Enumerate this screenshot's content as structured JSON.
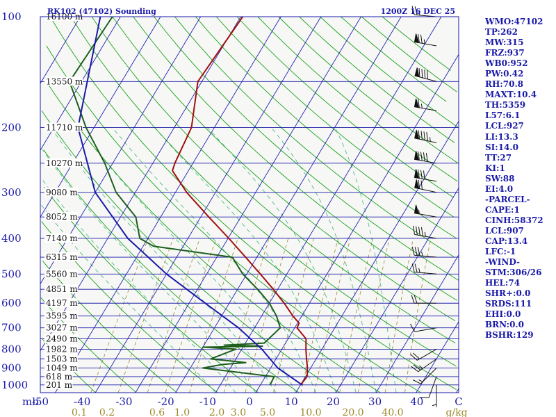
{
  "header": {
    "station": "RK102 (47102) Sounding",
    "time": "1200Z 16 DEC 25"
  },
  "indices": [
    "WMO:47102",
    "TP:262",
    "MW:315",
    "FRZ:937",
    "WB0:952",
    "PW:0.42",
    "RH:70.8",
    "MAXT:10.4",
    "TH:5359",
    "L57:6.1",
    "LCL:927",
    "LI:13.3",
    "SI:14.0",
    "TT:27",
    "KI:1",
    "SW:88",
    "EI:4.0",
    "-PARCEL-",
    "CAPE:1",
    "CINH:58372",
    "LCL:907",
    "CAP:13.4",
    "LFC:-1",
    "-WIND-",
    "STM:306/26",
    "HEL:74",
    "SHR+:0.0",
    "SRDS:111",
    "EHI:0.0",
    "BRN:0.0",
    "BSHR:129"
  ],
  "chart_data": {
    "type": "line",
    "subtype": "skew-T log-P thermodynamic diagram",
    "y_axis": {
      "unit": "mb",
      "scale": "log",
      "range": [
        1000,
        100
      ],
      "tick_labels": [
        "100",
        "200",
        "300",
        "400",
        "500",
        "600",
        "700",
        "800",
        "900",
        "1000"
      ]
    },
    "x_axis": {
      "unit": "C",
      "range": [
        -50,
        50
      ],
      "tick_labels": [
        "-50",
        "-40",
        "-30",
        "-20",
        "-10",
        "0",
        "10",
        "20",
        "30",
        "40",
        "C"
      ]
    },
    "mixing_ratio_axis": {
      "unit": "g/kg",
      "tick_labels": [
        "0.1",
        "0.2",
        "0.6",
        "1.0",
        "2.0",
        "3.0",
        "5.0",
        "10.0",
        "20.0",
        "40.0",
        "g/kg"
      ]
    },
    "heights_m": [
      {
        "p": 100,
        "label": "16100 m"
      },
      {
        "p": 150,
        "label": "13550 m"
      },
      {
        "p": 200,
        "label": "11710 m"
      },
      {
        "p": 250,
        "label": "10270 m"
      },
      {
        "p": 300,
        "label": "9080 m"
      },
      {
        "p": 350,
        "label": "8052 m"
      },
      {
        "p": 400,
        "label": "7140 m"
      },
      {
        "p": 450,
        "label": "6315 m"
      },
      {
        "p": 500,
        "label": "5560 m"
      },
      {
        "p": 550,
        "label": "4851 m"
      },
      {
        "p": 600,
        "label": "4197 m"
      },
      {
        "p": 650,
        "label": "3595 m"
      },
      {
        "p": 700,
        "label": "3027 m"
      },
      {
        "p": 750,
        "label": "2490 m"
      },
      {
        "p": 800,
        "label": "1982 m"
      },
      {
        "p": 850,
        "label": "1503 m"
      },
      {
        "p": 900,
        "label": "1049 m"
      },
      {
        "p": 950,
        "label": "618 m"
      },
      {
        "p": 1000,
        "label": "201 m"
      }
    ],
    "series": [
      {
        "name": "temperature",
        "color": "#a01010",
        "points": [
          {
            "p": 100,
            "t": -59.5
          },
          {
            "p": 150,
            "t": -61.0
          },
          {
            "p": 200,
            "t": -55.7
          },
          {
            "p": 250,
            "t": -54.5
          },
          {
            "p": 262,
            "t": -54.0
          },
          {
            "p": 300,
            "t": -47.2
          },
          {
            "p": 350,
            "t": -38.0
          },
          {
            "p": 400,
            "t": -29.8
          },
          {
            "p": 450,
            "t": -22.8
          },
          {
            "p": 500,
            "t": -16.6
          },
          {
            "p": 550,
            "t": -11.1
          },
          {
            "p": 600,
            "t": -6.3
          },
          {
            "p": 650,
            "t": -2.2
          },
          {
            "p": 680,
            "t": 0.4
          },
          {
            "p": 700,
            "t": 0.6
          },
          {
            "p": 750,
            "t": 4.5
          },
          {
            "p": 800,
            "t": 6.0
          },
          {
            "p": 850,
            "t": 7.6
          },
          {
            "p": 900,
            "t": 9.2
          },
          {
            "p": 950,
            "t": 10.4
          },
          {
            "p": 1000,
            "t": 10.0
          }
        ]
      },
      {
        "name": "dewpoint",
        "color": "#1d5e1d",
        "points": [
          {
            "p": 100,
            "t": -92.0
          },
          {
            "p": 150,
            "t": -93.0
          },
          {
            "p": 200,
            "t": -82.0
          },
          {
            "p": 250,
            "t": -72.0
          },
          {
            "p": 300,
            "t": -64.8
          },
          {
            "p": 350,
            "t": -56.2
          },
          {
            "p": 400,
            "t": -52.0
          },
          {
            "p": 420,
            "t": -47.4
          },
          {
            "p": 450,
            "t": -26.1
          },
          {
            "p": 500,
            "t": -21.0
          },
          {
            "p": 550,
            "t": -15.0
          },
          {
            "p": 600,
            "t": -10.0
          },
          {
            "p": 650,
            "t": -6.3
          },
          {
            "p": 700,
            "t": -3.6
          },
          {
            "p": 770,
            "t": -5.3
          },
          {
            "p": 780,
            "t": -15.0
          },
          {
            "p": 785,
            "t": -5.3
          },
          {
            "p": 790,
            "t": -20.0
          },
          {
            "p": 800,
            "t": -11.5
          },
          {
            "p": 850,
            "t": -16.3
          },
          {
            "p": 870,
            "t": -7.0
          },
          {
            "p": 880,
            "t": -12.5
          },
          {
            "p": 900,
            "t": -16.9
          },
          {
            "p": 950,
            "t": 2.2
          },
          {
            "p": 1000,
            "t": 2.4
          }
        ]
      },
      {
        "name": "parcel",
        "color": "#1a1aa8",
        "points": [
          {
            "p": 100,
            "t": -95.0
          },
          {
            "p": 200,
            "t": -84.0
          },
          {
            "p": 300,
            "t": -70.0
          },
          {
            "p": 400,
            "t": -55.0
          },
          {
            "p": 500,
            "t": -40.0
          },
          {
            "p": 600,
            "t": -26.0
          },
          {
            "p": 700,
            "t": -14.0
          },
          {
            "p": 800,
            "t": -5.0
          },
          {
            "p": 900,
            "t": 1.8
          },
          {
            "p": 1000,
            "t": 10.4
          }
        ]
      }
    ],
    "winds": [
      {
        "p": 100,
        "dir": 275,
        "spd": 25
      },
      {
        "p": 120,
        "dir": 280,
        "spd": 75
      },
      {
        "p": 150,
        "dir": 285,
        "spd": 90
      },
      {
        "p": 180,
        "dir": 280,
        "spd": 65
      },
      {
        "p": 220,
        "dir": 282,
        "spd": 95
      },
      {
        "p": 250,
        "dir": 280,
        "spd": 90
      },
      {
        "p": 280,
        "dir": 280,
        "spd": 80
      },
      {
        "p": 300,
        "dir": 282,
        "spd": 70
      },
      {
        "p": 350,
        "dir": 280,
        "spd": 55
      },
      {
        "p": 400,
        "dir": 280,
        "spd": 45
      },
      {
        "p": 450,
        "dir": 275,
        "spd": 35
      },
      {
        "p": 500,
        "dir": 275,
        "spd": 25
      },
      {
        "p": 600,
        "dir": 270,
        "spd": 20
      },
      {
        "p": 700,
        "dir": 260,
        "spd": 10
      },
      {
        "p": 800,
        "dir": 240,
        "spd": 20
      },
      {
        "p": 850,
        "dir": 235,
        "spd": 25
      },
      {
        "p": 900,
        "dir": 225,
        "spd": 15
      },
      {
        "p": 950,
        "dir": 200,
        "spd": 10
      },
      {
        "p": 1000,
        "dir": 180,
        "spd": 5
      }
    ],
    "legend": "none",
    "grid": true,
    "colors": {
      "isobar": "#1a1aa8",
      "isotherm": "#1a1aa8",
      "dry_adiabat": "#18a018",
      "moist_adiabat": "#5fbf8f",
      "mixing_ratio": "#9a8a2a"
    }
  }
}
